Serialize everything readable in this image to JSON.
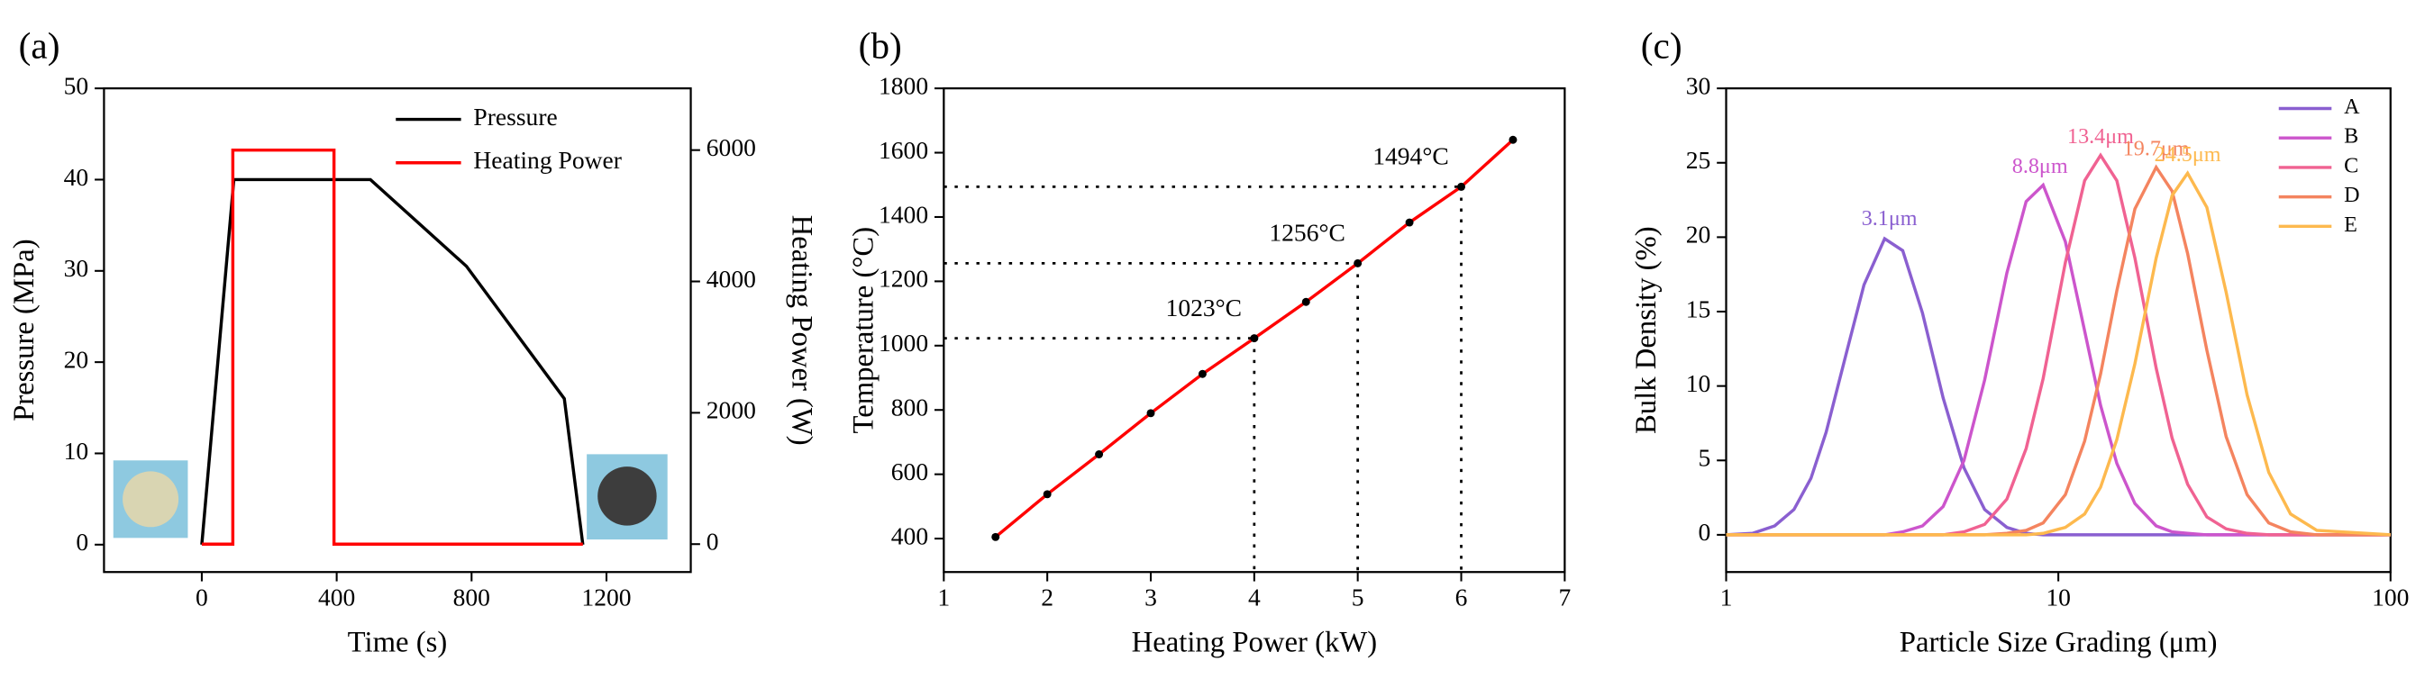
{
  "chart_data": [
    {
      "type": "line",
      "panel_label": "(a)",
      "xlabel": "Time (s)",
      "ylabel": "Pressure (MPa)",
      "y2label": "Heating Power (W)",
      "xlim": [
        -290,
        1450
      ],
      "xticks": [
        0,
        400,
        800,
        1200
      ],
      "ylim": [
        -3,
        50
      ],
      "yticks": [
        0,
        10,
        20,
        30,
        40,
        50
      ],
      "y2lim": [
        -425,
        6940
      ],
      "y2ticks": [
        0,
        2000,
        4000,
        6000
      ],
      "legend": "upper right",
      "series": [
        {
          "name": "Pressure",
          "color": "#000000",
          "x": [
            0,
            95,
            500,
            785,
            1075,
            1130
          ],
          "values": [
            0,
            40,
            40,
            30.5,
            16,
            0
          ]
        },
        {
          "name": "Heating Power",
          "color": "#ff0000",
          "axis": "y2",
          "x": [
            0,
            92,
            92,
            392,
            392,
            1130
          ],
          "values": [
            0,
            0,
            6000,
            6000,
            0,
            0
          ]
        }
      ]
    },
    {
      "type": "line",
      "panel_label": "(b)",
      "xlabel": "Heating Power (kW)",
      "ylabel": "Temperature (°C)",
      "xlim": [
        1,
        7
      ],
      "xticks": [
        1,
        2,
        3,
        4,
        5,
        6,
        7
      ],
      "ylim": [
        296,
        1800
      ],
      "yticks": [
        400,
        600,
        800,
        1000,
        1200,
        1400,
        1600,
        1800
      ],
      "markers": true,
      "x": [
        1.5,
        2,
        2.5,
        3,
        3.5,
        4,
        4.5,
        5,
        5.5,
        6,
        6.5
      ],
      "series": [
        {
          "color": "#ff0000",
          "marker_color": "#000000",
          "values": [
            405,
            538,
            662,
            790,
            912,
            1023,
            1136,
            1256,
            1383,
            1494,
            1640
          ]
        }
      ],
      "annotations": [
        {
          "text": "1023°C",
          "x": 4,
          "y": 1023
        },
        {
          "text": "1256°C",
          "x": 5,
          "y": 1256
        },
        {
          "text": "1494°C",
          "x": 6,
          "y": 1494
        }
      ]
    },
    {
      "type": "line",
      "panel_label": "(c)",
      "xlabel": "Particle Size Grading (μm)",
      "ylabel": "Bulk Density (%)",
      "xscale": "log",
      "xlim": [
        1,
        100
      ],
      "xticks": [
        1,
        10,
        100
      ],
      "ylim": [
        -2.5,
        30
      ],
      "yticks": [
        0,
        5,
        10,
        15,
        20,
        25,
        30
      ],
      "legend": "upper right",
      "x": [
        1,
        1.2,
        1.4,
        1.6,
        1.8,
        2,
        2.3,
        2.6,
        3,
        3.4,
        3.9,
        4.5,
        5.2,
        6,
        7,
        8,
        9,
        10.5,
        12,
        13.4,
        15,
        17,
        19.7,
        22,
        24.5,
        28,
        32,
        37,
        43,
        50,
        60,
        100
      ],
      "series": [
        {
          "name": "A",
          "color": "#8a5fd0",
          "values": [
            0,
            0.1,
            0.6,
            1.7,
            3.8,
            6.9,
            12.2,
            16.8,
            19.9,
            19.1,
            14.9,
            9.2,
            4.5,
            1.7,
            0.5,
            0.1,
            0,
            0,
            0,
            0,
            0,
            0,
            0,
            0,
            0,
            0,
            0,
            0,
            0,
            0,
            0,
            0
          ],
          "annotation": {
            "text": "3.1μm",
            "x": 3.1,
            "y": 20
          }
        },
        {
          "name": "B",
          "color": "#cc55cc",
          "values": [
            0,
            0,
            0,
            0,
            0,
            0,
            0,
            0,
            0,
            0.2,
            0.6,
            1.9,
            5,
            10.4,
            17.6,
            22.4,
            23.5,
            19.7,
            13.7,
            8.7,
            4.8,
            2.1,
            0.6,
            0.2,
            0.1,
            0,
            0,
            0,
            0,
            0,
            0,
            0
          ],
          "annotation": {
            "text": "8.8μm",
            "x": 8.8,
            "y": 23.5
          }
        },
        {
          "name": "C",
          "color": "#f06292",
          "values": [
            0,
            0,
            0,
            0,
            0,
            0,
            0,
            0,
            0,
            0,
            0,
            0,
            0.2,
            0.7,
            2.4,
            5.8,
            10.5,
            18.3,
            23.8,
            25.5,
            23.8,
            18.6,
            11.2,
            6.5,
            3.4,
            1.2,
            0.4,
            0.1,
            0,
            0,
            0,
            0
          ],
          "annotation": {
            "text": "13.4μm",
            "x": 13.4,
            "y": 25.5
          }
        },
        {
          "name": "D",
          "color": "#f4845f",
          "values": [
            0,
            0,
            0,
            0,
            0,
            0,
            0,
            0,
            0,
            0,
            0,
            0,
            0,
            0,
            0.1,
            0.3,
            0.8,
            2.7,
            6.3,
            10.8,
            16.4,
            21.9,
            24.7,
            23.1,
            18.9,
            12.4,
            6.6,
            2.7,
            0.8,
            0.2,
            0,
            0
          ],
          "annotation": {
            "text": "19.7μm",
            "x": 19.7,
            "y": 24.7
          }
        },
        {
          "name": "E",
          "color": "#fdb94e",
          "values": [
            0,
            0,
            0,
            0,
            0,
            0,
            0,
            0,
            0,
            0,
            0,
            0,
            0,
            0,
            0,
            0,
            0.1,
            0.5,
            1.4,
            3.2,
            6.4,
            11.5,
            18.6,
            22.8,
            24.3,
            22,
            16.3,
            9.4,
            4.2,
            1.4,
            0.3,
            0
          ],
          "annotation": {
            "text": "24.5μm",
            "x": 24.5,
            "y": 24.3
          }
        }
      ]
    }
  ]
}
